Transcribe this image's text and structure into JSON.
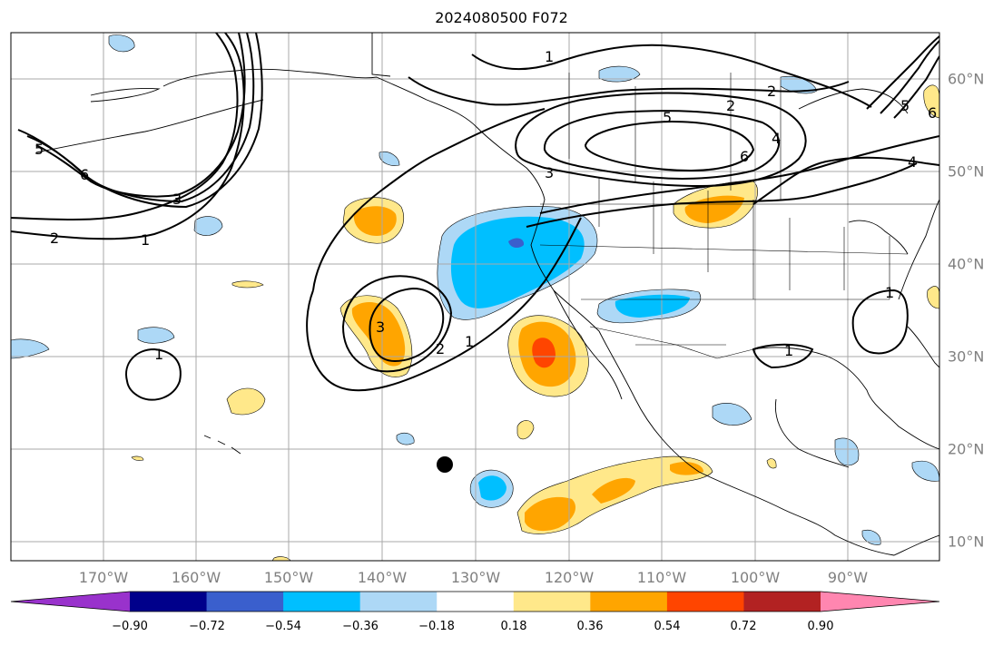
{
  "title": "2024080500 F072",
  "lon_labels": [
    "170°W",
    "160°W",
    "150°W",
    "140°W",
    "130°W",
    "120°W",
    "110°W",
    "100°W",
    "90°W"
  ],
  "lat_labels": [
    "60°N",
    "50°N",
    "40°N",
    "30°N",
    "20°N",
    "10°N"
  ],
  "colorbar": {
    "labels": [
      "−0.90",
      "−0.72",
      "−0.54",
      "−0.36",
      "−0.18",
      "0.18",
      "0.36",
      "0.54",
      "0.72",
      "0.90"
    ],
    "colors": [
      "#9932cc",
      "#00008b",
      "#3a5fcd",
      "#00bfff",
      "#add8f6",
      "#ffffff",
      "#ffe88a",
      "#ffa500",
      "#ff4500",
      "#b22222",
      "#ff86b0"
    ]
  },
  "contour_labels": [
    "1",
    "2",
    "3",
    "4",
    "5",
    "6"
  ],
  "colors": {
    "positive_light": "#ffe88a",
    "positive_mid": "#ffa500",
    "positive_strong": "#ff4500",
    "negative_light": "#add8f6",
    "negative_mid": "#00bfff",
    "negative_strong": "#3a5fcd"
  }
}
